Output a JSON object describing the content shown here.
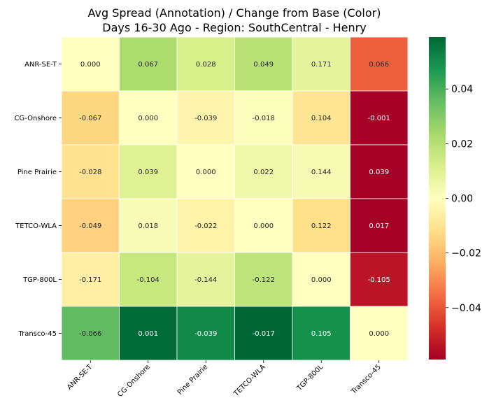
{
  "chart_data": {
    "type": "heatmap",
    "title": "Avg Spread (Annotation) / Change from Base (Color)",
    "subtitle": "Days 16-30 Ago - Region: SouthCentral - Henry",
    "rows": [
      "ANR-SE-T",
      "CG-Onshore",
      "Pine Prairie",
      "TETCO-WLA",
      "TGP-800L",
      "Transco-45"
    ],
    "columns": [
      "ANR-SE-T",
      "CG-Onshore",
      "Pine Prairie",
      "TETCO-WLA",
      "TGP-800L",
      "Transco-45"
    ],
    "annotations": [
      [
        "0.000",
        "0.067",
        "0.028",
        "0.049",
        "0.171",
        "0.066"
      ],
      [
        "-0.067",
        "0.000",
        "-0.039",
        "-0.018",
        "0.104",
        "-0.001"
      ],
      [
        "-0.028",
        "0.039",
        "0.000",
        "0.022",
        "0.144",
        "0.039"
      ],
      [
        "-0.049",
        "0.018",
        "-0.022",
        "0.000",
        "0.122",
        "0.017"
      ],
      [
        "-0.171",
        "-0.104",
        "-0.144",
        "-0.122",
        "0.000",
        "-0.105"
      ],
      [
        "-0.066",
        "0.001",
        "-0.039",
        "-0.017",
        "0.105",
        "0.000"
      ]
    ],
    "color_values": [
      [
        0.0,
        0.022,
        0.012,
        0.019,
        0.008,
        -0.038
      ],
      [
        -0.014,
        0.0,
        -0.004,
        0.001,
        -0.01,
        -0.059
      ],
      [
        -0.011,
        0.01,
        0.0,
        0.005,
        0.003,
        -0.059
      ],
      [
        -0.015,
        0.002,
        -0.005,
        0.0,
        -0.012,
        -0.059
      ],
      [
        -0.006,
        0.016,
        0.008,
        0.018,
        0.0,
        -0.054
      ],
      [
        0.036,
        0.058,
        0.051,
        0.059,
        0.049,
        0.0
      ]
    ],
    "colormap": "RdYlGn",
    "color_range": [
      -0.059,
      0.059
    ],
    "colorbar_ticks": [
      {
        "value": 0.04,
        "label": "0.04"
      },
      {
        "value": 0.02,
        "label": "0.02"
      },
      {
        "value": 0.0,
        "label": "0.00"
      },
      {
        "value": -0.02,
        "label": "−0.02"
      },
      {
        "value": -0.04,
        "label": "−0.04"
      }
    ],
    "colors": {
      "dark_red": "#a50026",
      "red": "#d73027",
      "orange": "#f46d43",
      "light_orange": "#fdae61",
      "pale_orange": "#fee08b",
      "pale_yellow": "#ffffbf",
      "pale_green": "#d9ef8b",
      "light_green": "#a6d96a",
      "green": "#66bd63",
      "mid_green": "#1a9850",
      "dark_green": "#006837"
    }
  }
}
